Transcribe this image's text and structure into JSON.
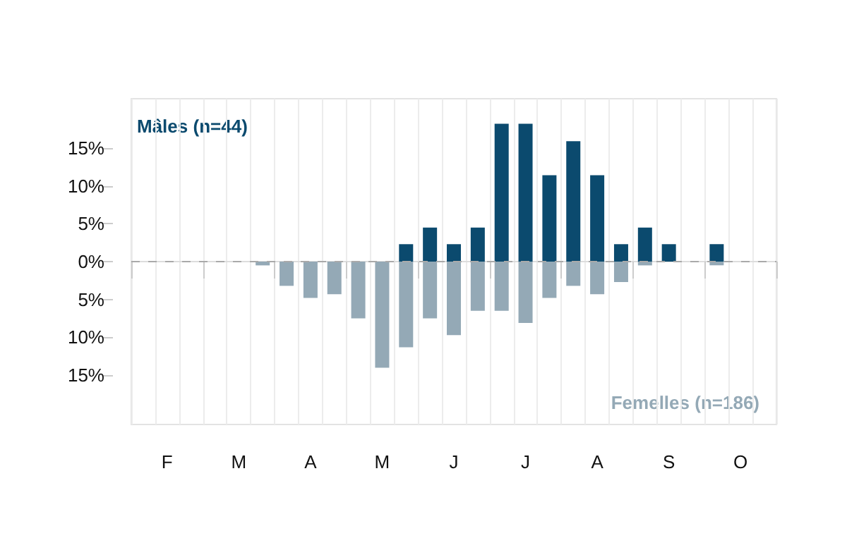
{
  "chart_data": {
    "type": "bar",
    "categories": [
      null,
      "F",
      null,
      null,
      "M",
      null,
      null,
      "A",
      null,
      null,
      "M",
      null,
      null,
      "J",
      null,
      null,
      "J",
      null,
      null,
      "A",
      null,
      null,
      "S",
      null,
      null,
      "O",
      null
    ],
    "series": [
      {
        "name": "Mâles (n=44)",
        "color": "#0b4a6e",
        "values": [
          0,
          0,
          0,
          0,
          0,
          0,
          0,
          0,
          0,
          0,
          0,
          2.3,
          4.5,
          2.3,
          4.5,
          18.2,
          18.2,
          11.4,
          15.9,
          11.4,
          2.3,
          4.5,
          2.3,
          0,
          2.3,
          0,
          0
        ]
      },
      {
        "name": "Femelles (n=186)",
        "color": "#94a9b6",
        "values": [
          0,
          0,
          0,
          0,
          0,
          -0.5,
          -3.2,
          -4.8,
          -4.3,
          -7.5,
          -14.0,
          -11.3,
          -7.5,
          -9.7,
          -6.5,
          -6.5,
          -8.1,
          -4.8,
          -3.2,
          -4.3,
          -2.7,
          -0.5,
          0,
          0,
          -0.5,
          0,
          0
        ]
      }
    ],
    "ylim": [
      -21.5,
      21.5
    ],
    "yticks": [
      {
        "value": -15,
        "label": "15%"
      },
      {
        "value": -10,
        "label": "10%"
      },
      {
        "value": -5,
        "label": "5%"
      },
      {
        "value": 0,
        "label": "0%"
      },
      {
        "value": 5,
        "label": "5%"
      },
      {
        "value": 10,
        "label": "10%"
      },
      {
        "value": 15,
        "label": "15%"
      }
    ],
    "ref_lines": [
      {
        "axis": "y",
        "value": 0,
        "color": "#aaaaaa",
        "line_style": "dashed"
      }
    ],
    "grid": "x",
    "legend": false
  }
}
